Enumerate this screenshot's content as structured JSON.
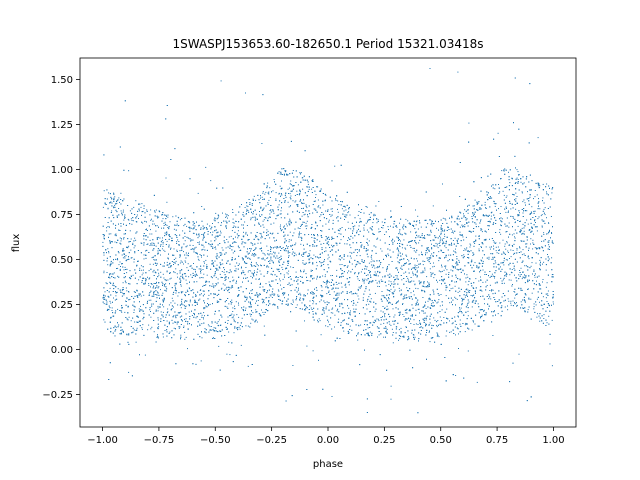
{
  "chart_data": {
    "type": "scatter",
    "title": "1SWASPJ153653.60-182650.1 Period 15321.03418s",
    "xlabel": "phase",
    "ylabel": "flux",
    "xlim": [
      -1.1,
      1.1
    ],
    "ylim": [
      -0.43,
      1.62
    ],
    "x_ticks": [
      -1.0,
      -0.75,
      -0.5,
      -0.25,
      0.0,
      0.25,
      0.5,
      0.75,
      1.0
    ],
    "x_tick_labels": [
      "−1.00",
      "−0.75",
      "−0.50",
      "−0.25",
      "0.00",
      "0.25",
      "0.50",
      "0.75",
      "1.00"
    ],
    "y_ticks": [
      -0.25,
      0.0,
      0.25,
      0.5,
      0.75,
      1.0,
      1.25,
      1.5
    ],
    "y_tick_labels": [
      "−0.25",
      "0.00",
      "0.25",
      "0.50",
      "0.75",
      "1.00",
      "1.25",
      "1.50"
    ],
    "grid": false,
    "legend": "none",
    "marker_color": "#1f77b4",
    "x_range": [
      -1.0,
      1.0
    ],
    "series": [
      {
        "x": [
          -1.0,
          -0.9,
          -0.8,
          -0.7,
          -0.6,
          -0.5,
          -0.4,
          -0.3,
          -0.2,
          -0.1,
          0.0,
          0.1,
          0.2,
          0.3,
          0.4,
          0.5,
          0.6,
          0.7,
          0.8,
          0.9,
          1.0
        ],
        "y_center": [
          0.47,
          0.44,
          0.42,
          0.4,
          0.39,
          0.41,
          0.45,
          0.52,
          0.63,
          0.58,
          0.47,
          0.43,
          0.41,
          0.4,
          0.39,
          0.4,
          0.44,
          0.5,
          0.62,
          0.58,
          0.47
        ],
        "y_lower": [
          0.1,
          0.08,
          0.07,
          0.06,
          0.05,
          0.06,
          0.1,
          0.16,
          0.25,
          0.2,
          0.12,
          0.08,
          0.07,
          0.06,
          0.05,
          0.06,
          0.09,
          0.14,
          0.24,
          0.2,
          0.1
        ],
        "y_upper": [
          0.9,
          0.85,
          0.8,
          0.75,
          0.72,
          0.74,
          0.8,
          0.88,
          1.02,
          0.98,
          0.87,
          0.8,
          0.76,
          0.74,
          0.72,
          0.73,
          0.78,
          0.88,
          1.03,
          0.97,
          0.9
        ]
      }
    ]
  }
}
